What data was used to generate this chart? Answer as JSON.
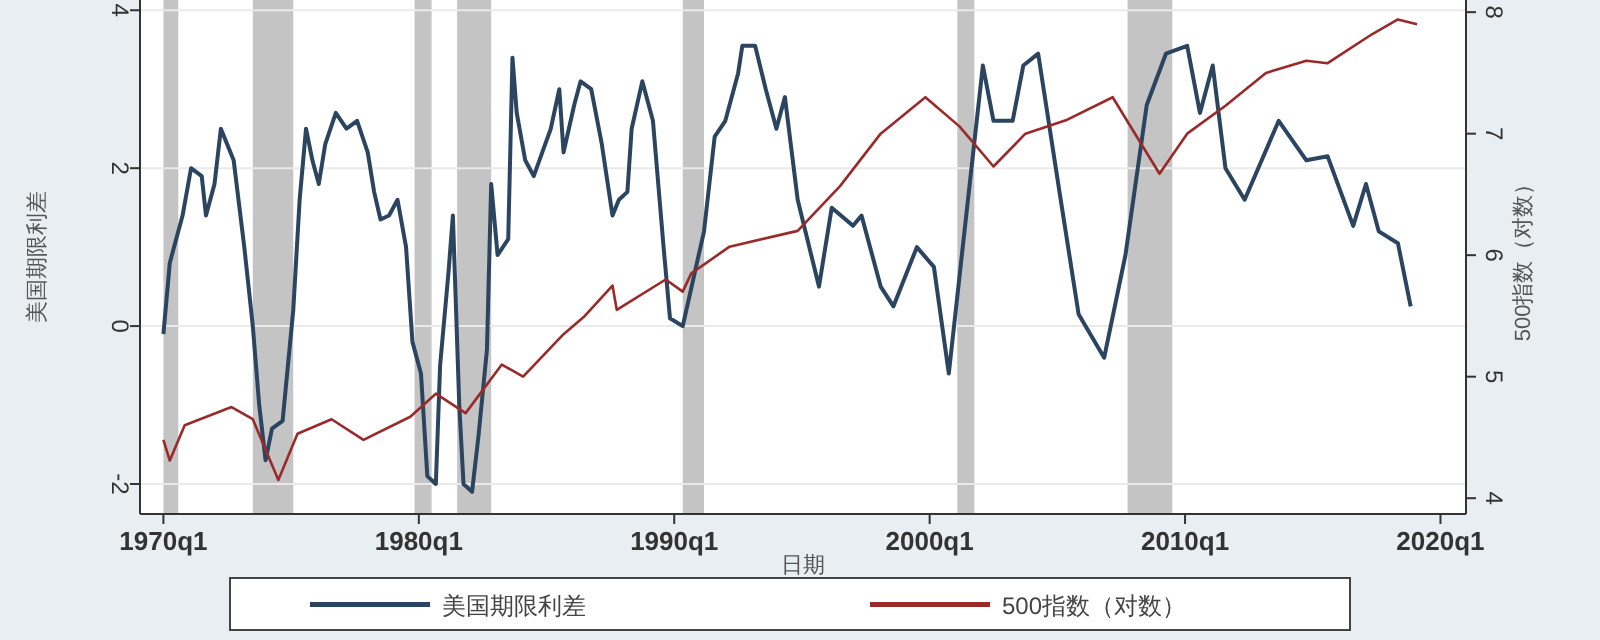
{
  "chart_data": {
    "type": "line",
    "xlabel": "日期",
    "ylabel": "美国期限利差",
    "y2label": "500指数（对数）",
    "xlim": [
      "1969-02",
      "2021-01"
    ],
    "xticks": [
      {
        "value": "1970-01",
        "label": "1970q1"
      },
      {
        "value": "1980-01",
        "label": "1980q1"
      },
      {
        "value": "1990-01",
        "label": "1990q1"
      },
      {
        "value": "2000-01",
        "label": "2000q1"
      },
      {
        "value": "2010-01",
        "label": "2010q1"
      },
      {
        "value": "2020-01",
        "label": "2020q1"
      }
    ],
    "ylim": [
      -2.38,
      4.13
    ],
    "yticks": [
      -2,
      0,
      2,
      4
    ],
    "y2lim": [
      3.87,
      8.1
    ],
    "y2ticks": [
      4,
      5,
      6,
      7,
      8
    ],
    "grid": "y",
    "legend": "bottom",
    "bands": [
      {
        "axis": "x",
        "from": "1970-01",
        "to": "1970-08",
        "color": "#c4c4c4"
      },
      {
        "axis": "x",
        "from": "1973-07",
        "to": "1975-02",
        "color": "#c4c4c4"
      },
      {
        "axis": "x",
        "from": "1979-11",
        "to": "1980-07",
        "color": "#c4c4c4"
      },
      {
        "axis": "x",
        "from": "1981-07",
        "to": "1982-11",
        "color": "#c4c4c4"
      },
      {
        "axis": "x",
        "from": "1990-05",
        "to": "1991-03",
        "color": "#c4c4c4"
      },
      {
        "axis": "x",
        "from": "2001-02",
        "to": "2001-10",
        "color": "#c4c4c4"
      },
      {
        "axis": "x",
        "from": "2007-10",
        "to": "2009-07",
        "color": "#c4c4c4"
      }
    ],
    "series": [
      {
        "name": "美国期限利差",
        "color": "#2b4560",
        "x": [
          "1970-01",
          "1970-04",
          "1970-10",
          "1971-02",
          "1971-07",
          "1971-09",
          "1972-01",
          "1972-04",
          "1972-10",
          "1973-03",
          "1973-07",
          "1973-10",
          "1974-01",
          "1974-04",
          "1974-09",
          "1975-02",
          "1975-05",
          "1975-08",
          "1975-11",
          "1976-02",
          "1976-05",
          "1976-10",
          "1977-03",
          "1977-08",
          "1978-01",
          "1978-04",
          "1978-07",
          "1978-11",
          "1979-03",
          "1979-07",
          "1979-10",
          "1980-02",
          "1980-05",
          "1980-09",
          "1980-11",
          "1981-03",
          "1981-05",
          "1981-08",
          "1981-10",
          "1982-02",
          "1982-05",
          "1982-09",
          "1982-11",
          "1983-02",
          "1983-07",
          "1983-09",
          "1983-11",
          "1984-03",
          "1984-07",
          "1984-11",
          "1985-03",
          "1985-07",
          "1985-09",
          "1986-02",
          "1986-05",
          "1986-10",
          "1987-03",
          "1987-08",
          "1987-11",
          "1988-03",
          "1988-05",
          "1988-10",
          "1989-03",
          "1989-08",
          "1989-11",
          "1990-05",
          "1990-10",
          "1991-03",
          "1991-08",
          "1992-01",
          "1992-07",
          "1992-09",
          "1993-03",
          "1993-08",
          "1994-01",
          "1994-05",
          "1994-11",
          "1995-09",
          "1996-03",
          "1997-01",
          "1997-05",
          "1998-02",
          "1998-08",
          "1999-07",
          "2000-03",
          "2000-10",
          "2001-07",
          "2002-02",
          "2002-07",
          "2003-04",
          "2003-09",
          "2004-04",
          "2005-02",
          "2005-11",
          "2006-11",
          "2007-09",
          "2008-07",
          "2009-04",
          "2010-02",
          "2010-08",
          "2011-02",
          "2011-08",
          "2012-05",
          "2013-09",
          "2014-10",
          "2015-08",
          "2016-08",
          "2017-02",
          "2017-08",
          "2018-05",
          "2018-11"
        ],
        "values": [
          -0.1,
          0.8,
          1.4,
          2.0,
          1.9,
          1.4,
          1.8,
          2.5,
          2.1,
          1.0,
          0.0,
          -1.0,
          -1.7,
          -1.3,
          -1.2,
          0.2,
          1.6,
          2.5,
          2.1,
          1.8,
          2.3,
          2.7,
          2.5,
          2.6,
          2.2,
          1.7,
          1.35,
          1.4,
          1.6,
          1.0,
          -0.2,
          -0.6,
          -1.9,
          -2.0,
          -0.5,
          0.7,
          1.4,
          -1.0,
          -2.0,
          -2.1,
          -1.4,
          -0.3,
          1.8,
          0.9,
          1.1,
          3.4,
          2.7,
          2.1,
          1.9,
          2.2,
          2.5,
          3.0,
          2.2,
          2.8,
          3.1,
          3.0,
          2.3,
          1.4,
          1.6,
          1.7,
          2.5,
          3.1,
          2.6,
          1.0,
          0.1,
          0.0,
          0.6,
          1.2,
          2.4,
          2.6,
          3.2,
          3.55,
          3.55,
          3.0,
          2.5,
          2.9,
          1.6,
          0.5,
          1.5,
          1.27,
          1.4,
          0.5,
          0.25,
          1.0,
          0.75,
          -0.6,
          1.6,
          3.3,
          2.6,
          2.6,
          3.3,
          3.45,
          1.7,
          0.15,
          -0.4,
          0.9,
          2.8,
          3.45,
          3.55,
          2.7,
          3.3,
          2.0,
          1.6,
          2.6,
          2.1,
          2.15,
          1.27,
          1.8,
          1.2,
          1.05,
          0.25
        ]
      },
      {
        "name": "500指数（对数）",
        "color": "#9a2a2a",
        "axis": "y2",
        "x": [
          "1970-01",
          "1970-04",
          "1970-11",
          "1972-09",
          "1973-07",
          "1974-07",
          "1975-04",
          "1976-08",
          "1977-11",
          "1979-09",
          "1980-09",
          "1981-11",
          "1983-04",
          "1984-02",
          "1985-09",
          "1986-07",
          "1987-08",
          "1987-10",
          "1989-09",
          "1990-05",
          "1990-09",
          "1992-03",
          "1994-11",
          "1996-07",
          "1998-02",
          "1999-11",
          "2001-03",
          "2002-07",
          "2003-10",
          "2005-05",
          "2007-03",
          "2009-01",
          "2010-02",
          "2011-08",
          "2013-03",
          "2014-10",
          "2015-08",
          "2017-05",
          "2018-05",
          "2019-02"
        ],
        "values": [
          4.48,
          4.31,
          4.6,
          4.75,
          4.65,
          4.15,
          4.53,
          4.65,
          4.48,
          4.67,
          4.86,
          4.7,
          5.1,
          5.0,
          5.35,
          5.5,
          5.75,
          5.55,
          5.8,
          5.7,
          5.85,
          6.07,
          6.2,
          6.57,
          7.0,
          7.3,
          7.06,
          6.73,
          7.0,
          7.11,
          7.3,
          6.67,
          7.0,
          7.23,
          7.5,
          7.6,
          7.58,
          7.82,
          7.94,
          7.9
        ]
      }
    ]
  }
}
